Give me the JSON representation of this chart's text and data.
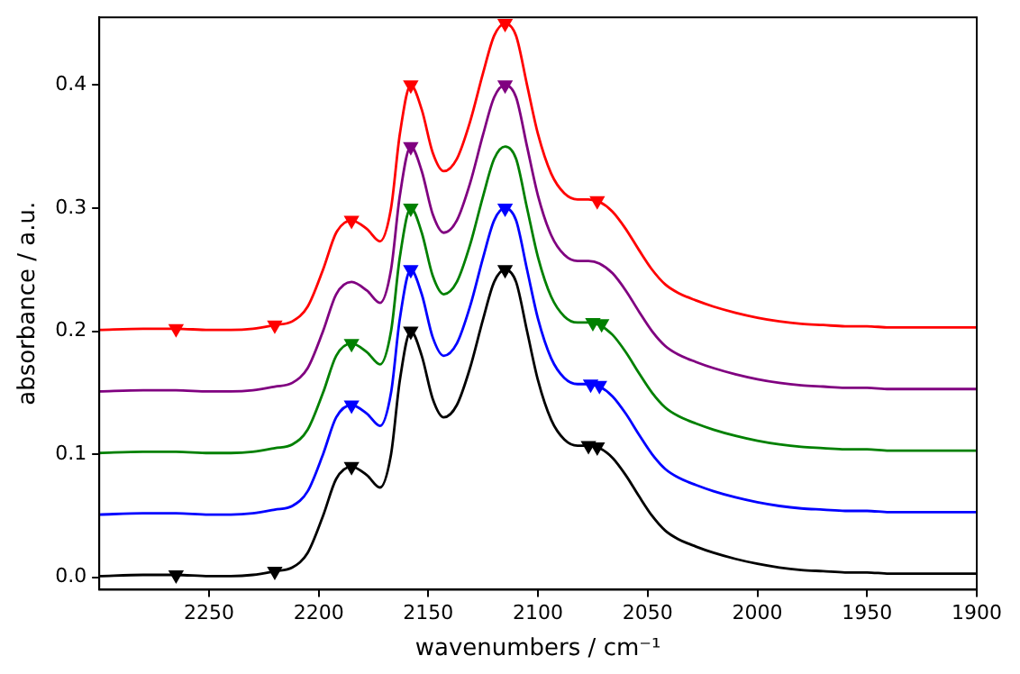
{
  "chart_data": {
    "type": "line",
    "xlabel": "wavenumbers / cm⁻¹",
    "ylabel": "absorbance / a.u.",
    "x": [
      2300,
      2280,
      2265,
      2250,
      2240,
      2230,
      2220,
      2212,
      2205,
      2198,
      2192,
      2185,
      2178,
      2172,
      2167,
      2163,
      2158,
      2153,
      2148,
      2143,
      2137,
      2131,
      2125,
      2120,
      2115,
      2110,
      2105,
      2100,
      2094,
      2088,
      2082,
      2077,
      2072,
      2066,
      2060,
      2054,
      2048,
      2042,
      2036,
      2028,
      2020,
      2010,
      2000,
      1990,
      1980,
      1970,
      1960,
      1950,
      1940,
      1920,
      1900
    ],
    "series": [
      {
        "color": "#000000",
        "marker": "none",
        "values": [
          0.001,
          0.002,
          0.002,
          0.001,
          0.001,
          0.002,
          0.005,
          0.008,
          0.02,
          0.05,
          0.08,
          0.09,
          0.083,
          0.073,
          0.1,
          0.16,
          0.2,
          0.18,
          0.145,
          0.13,
          0.14,
          0.17,
          0.21,
          0.24,
          0.25,
          0.24,
          0.2,
          0.16,
          0.128,
          0.112,
          0.107,
          0.107,
          0.105,
          0.097,
          0.083,
          0.066,
          0.05,
          0.038,
          0.031,
          0.025,
          0.02,
          0.015,
          0.011,
          0.008,
          0.006,
          0.005,
          0.004,
          0.004,
          0.003,
          0.003,
          0.003
        ]
      },
      {
        "color": "#0000ff",
        "marker": "none",
        "values": [
          0.051,
          0.052,
          0.052,
          0.051,
          0.051,
          0.052,
          0.055,
          0.058,
          0.07,
          0.1,
          0.13,
          0.14,
          0.133,
          0.123,
          0.15,
          0.21,
          0.25,
          0.23,
          0.195,
          0.18,
          0.19,
          0.22,
          0.26,
          0.29,
          0.3,
          0.29,
          0.25,
          0.21,
          0.178,
          0.162,
          0.157,
          0.157,
          0.155,
          0.147,
          0.133,
          0.116,
          0.1,
          0.088,
          0.081,
          0.075,
          0.07,
          0.065,
          0.061,
          0.058,
          0.056,
          0.055,
          0.054,
          0.054,
          0.053,
          0.053,
          0.053
        ]
      },
      {
        "color": "#008000",
        "marker": "none",
        "values": [
          0.101,
          0.102,
          0.102,
          0.101,
          0.101,
          0.102,
          0.105,
          0.108,
          0.12,
          0.15,
          0.18,
          0.19,
          0.183,
          0.173,
          0.2,
          0.26,
          0.3,
          0.28,
          0.245,
          0.23,
          0.24,
          0.27,
          0.31,
          0.34,
          0.35,
          0.34,
          0.3,
          0.26,
          0.228,
          0.212,
          0.207,
          0.207,
          0.205,
          0.197,
          0.183,
          0.166,
          0.15,
          0.138,
          0.131,
          0.125,
          0.12,
          0.115,
          0.111,
          0.108,
          0.106,
          0.105,
          0.104,
          0.104,
          0.103,
          0.103,
          0.103
        ]
      },
      {
        "color": "#800080",
        "marker": "none",
        "values": [
          0.151,
          0.152,
          0.152,
          0.151,
          0.151,
          0.152,
          0.155,
          0.158,
          0.17,
          0.2,
          0.23,
          0.24,
          0.233,
          0.223,
          0.25,
          0.31,
          0.35,
          0.33,
          0.295,
          0.28,
          0.29,
          0.32,
          0.36,
          0.39,
          0.4,
          0.39,
          0.35,
          0.31,
          0.278,
          0.262,
          0.257,
          0.257,
          0.255,
          0.247,
          0.233,
          0.216,
          0.2,
          0.188,
          0.181,
          0.175,
          0.17,
          0.165,
          0.161,
          0.158,
          0.156,
          0.155,
          0.154,
          0.154,
          0.153,
          0.153,
          0.153
        ]
      },
      {
        "color": "#ff0000",
        "marker": "none",
        "values": [
          0.201,
          0.202,
          0.202,
          0.201,
          0.201,
          0.202,
          0.205,
          0.208,
          0.22,
          0.25,
          0.28,
          0.29,
          0.283,
          0.273,
          0.3,
          0.36,
          0.4,
          0.38,
          0.345,
          0.33,
          0.34,
          0.37,
          0.41,
          0.44,
          0.45,
          0.44,
          0.4,
          0.36,
          0.328,
          0.312,
          0.307,
          0.307,
          0.305,
          0.297,
          0.283,
          0.266,
          0.25,
          0.238,
          0.231,
          0.225,
          0.22,
          0.215,
          0.211,
          0.208,
          0.206,
          0.205,
          0.204,
          0.204,
          0.203,
          0.203,
          0.203
        ]
      },
      {
        "type": "scatter",
        "color": "#ff0000",
        "marker": "triangle",
        "x": [
          2265,
          2220,
          2185,
          2158,
          2115,
          2073
        ],
        "values": [
          0.202,
          0.205,
          0.29,
          0.4,
          0.45,
          0.306
        ]
      },
      {
        "type": "scatter",
        "color": "#800080",
        "marker": "triangle",
        "x": [
          2158,
          2115
        ],
        "values": [
          0.35,
          0.4
        ]
      },
      {
        "type": "scatter",
        "color": "#008000",
        "marker": "triangle",
        "x": [
          2185,
          2158,
          2075,
          2071
        ],
        "values": [
          0.19,
          0.3,
          0.207,
          0.206
        ]
      },
      {
        "type": "scatter",
        "color": "#0000ff",
        "marker": "triangle",
        "x": [
          2185,
          2158,
          2115,
          2076,
          2072
        ],
        "values": [
          0.14,
          0.25,
          0.3,
          0.157,
          0.156
        ]
      },
      {
        "type": "scatter",
        "color": "#000000",
        "marker": "triangle",
        "x": [
          2265,
          2220,
          2185,
          2158,
          2115,
          2077,
          2073
        ],
        "values": [
          0.002,
          0.005,
          0.09,
          0.2,
          0.25,
          0.107,
          0.106
        ]
      }
    ],
    "xlim": [
      2300,
      1900
    ],
    "xticks": [
      2250,
      2200,
      2150,
      2100,
      2050,
      2000,
      1950,
      1900
    ],
    "ylim": [
      -0.01,
      0.455
    ],
    "yticks": [
      {
        "value": 0,
        "label": "0.0"
      },
      {
        "value": 0.1,
        "label": "0.1"
      },
      {
        "value": 0.2,
        "label": "0.2"
      },
      {
        "value": 0.3,
        "label": "0.3"
      },
      {
        "value": 0.4,
        "label": "0.4"
      }
    ],
    "grid": false,
    "legend": false
  }
}
